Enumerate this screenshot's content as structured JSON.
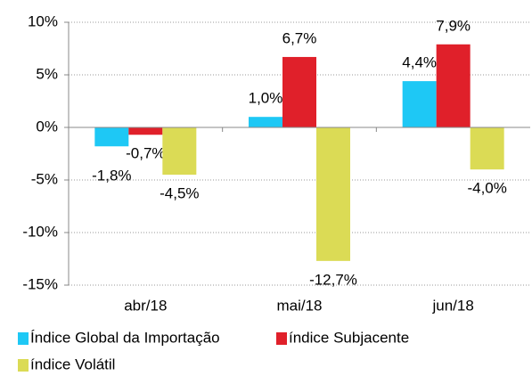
{
  "chart_data": {
    "type": "bar",
    "categories": [
      "abr/18",
      "mai/18",
      "jun/18"
    ],
    "series": [
      {
        "name": "Índice Global da Importação",
        "color": "#1ec8f5",
        "values": [
          -1.8,
          1.0,
          4.4
        ],
        "value_labels": [
          "-1,8%",
          "1,0%",
          "4,4%"
        ]
      },
      {
        "name": "índice Subjacente",
        "color": "#e0202a",
        "values": [
          -0.7,
          6.7,
          7.9
        ],
        "value_labels": [
          "-0,7%",
          "6,7%",
          "7,9%"
        ]
      },
      {
        "name": "índice Volátil",
        "color": "#dbdb55",
        "values": [
          -4.5,
          -12.7,
          -4.0
        ],
        "value_labels": [
          "-4,5%",
          "-12,7%",
          "-4,0%"
        ]
      }
    ],
    "ylim": [
      -15,
      10
    ],
    "yticks": [
      {
        "value": -15,
        "label": "-15%"
      },
      {
        "value": -10,
        "label": "-10%"
      },
      {
        "value": -5,
        "label": "-5%"
      },
      {
        "value": 0,
        "label": "0%"
      },
      {
        "value": 5,
        "label": "5%"
      },
      {
        "value": 10,
        "label": "10%"
      }
    ],
    "grid": true
  }
}
